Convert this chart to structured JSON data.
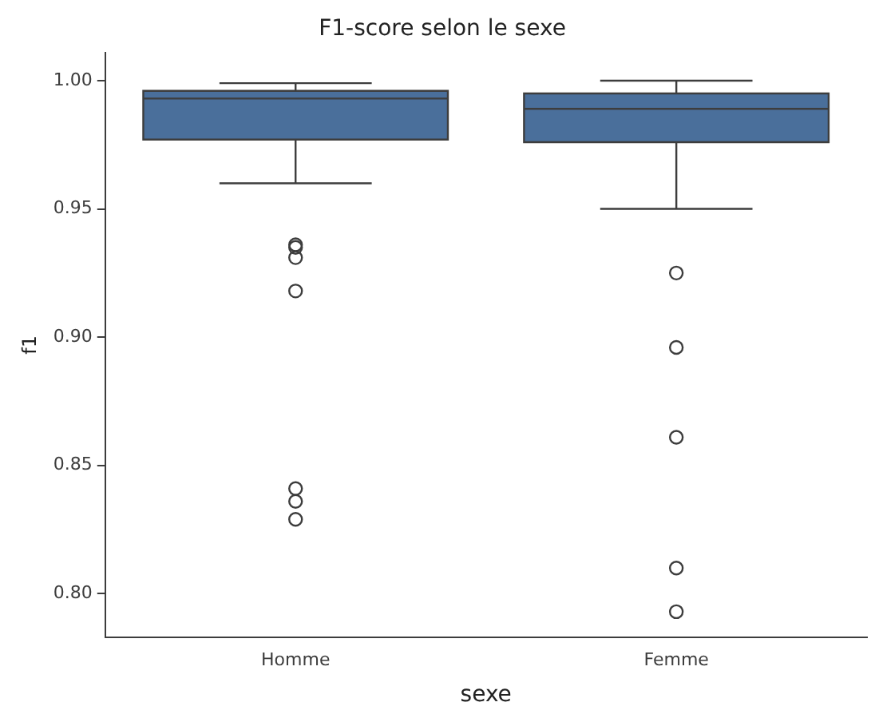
{
  "chart_data": {
    "type": "box",
    "title": "F1-score selon le sexe",
    "xlabel": "sexe",
    "ylabel": "f1",
    "categories": [
      "Homme",
      "Femme"
    ],
    "series": [
      {
        "color": "#4a6f9b",
        "boxes": [
          {
            "low": 0.96,
            "q1": 0.977,
            "median": 0.993,
            "q3": 0.996,
            "high": 0.999,
            "outliers": [
              0.936,
              0.935,
              0.931,
              0.918,
              0.841,
              0.836,
              0.829
            ]
          },
          {
            "low": 0.95,
            "q1": 0.976,
            "median": 0.989,
            "q3": 0.995,
            "high": 1.0,
            "outliers": [
              0.925,
              0.896,
              0.861,
              0.81,
              0.793
            ]
          }
        ]
      }
    ],
    "ylim": [
      0.783,
      1.011
    ],
    "yticks": [
      {
        "value": 0.8,
        "label": "0.80"
      },
      {
        "value": 0.85,
        "label": "0.85"
      },
      {
        "value": 0.9,
        "label": "0.90"
      },
      {
        "value": 0.95,
        "label": "0.95"
      },
      {
        "value": 1,
        "label": "1.00"
      }
    ],
    "grid": false,
    "legend": false,
    "marker": "circle"
  }
}
